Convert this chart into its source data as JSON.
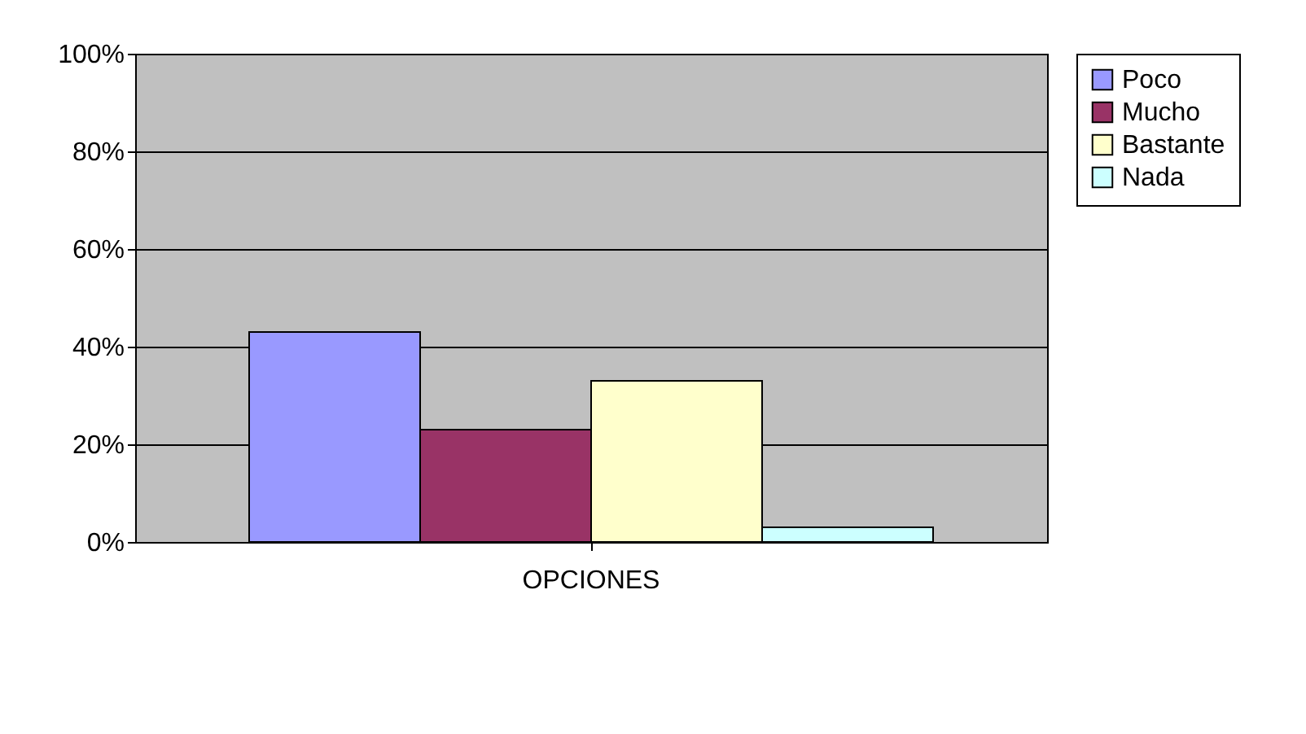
{
  "chart_data": {
    "type": "bar",
    "categories": [
      "OPCIONES"
    ],
    "series": [
      {
        "name": "Poco",
        "color": "#9999ff",
        "values": [
          43
        ]
      },
      {
        "name": "Mucho",
        "color": "#993366",
        "values": [
          23
        ]
      },
      {
        "name": "Bastante",
        "color": "#ffffcc",
        "values": [
          33
        ]
      },
      {
        "name": "Nada",
        "color": "#ccffff",
        "values": [
          3
        ]
      }
    ],
    "ylim": [
      0,
      100
    ],
    "yticks": [
      {
        "value": 0,
        "label": "0%"
      },
      {
        "value": 20,
        "label": "20%"
      },
      {
        "value": 40,
        "label": "40%"
      },
      {
        "value": 60,
        "label": "60%"
      },
      {
        "value": 80,
        "label": "80%"
      },
      {
        "value": 100,
        "label": "100%"
      }
    ],
    "grid": "y",
    "legend": "right"
  }
}
